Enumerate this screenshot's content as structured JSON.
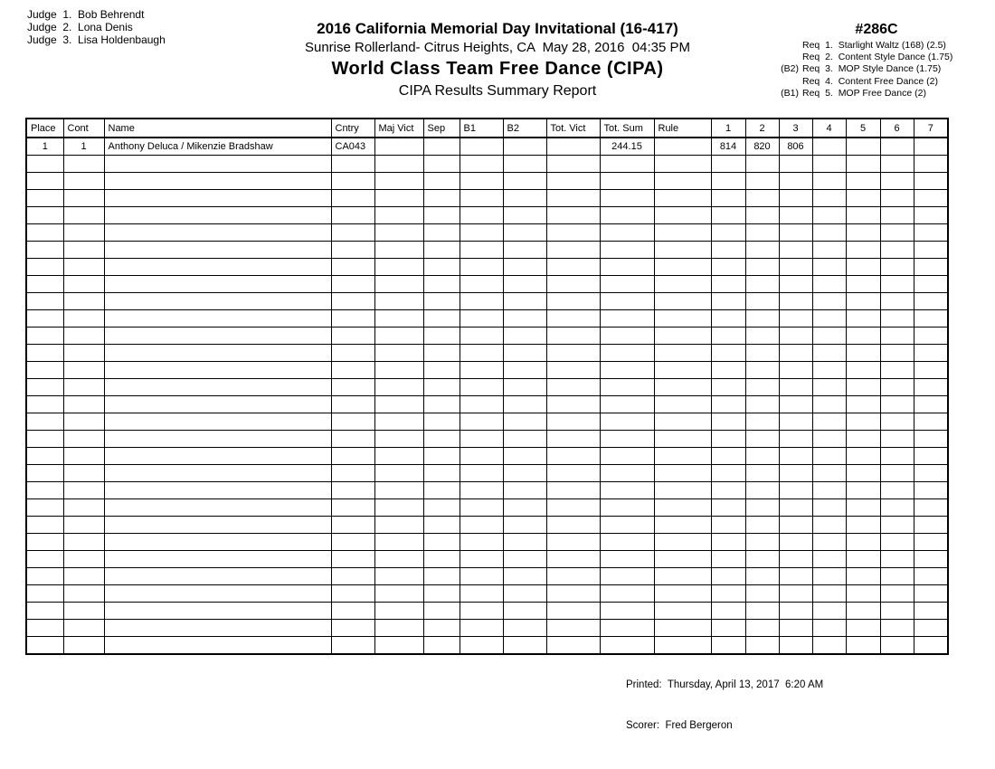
{
  "report": {
    "judges": [
      "Judge  1.  Bob Behrendt",
      "Judge  2.  Lona Denis",
      "Judge  3.  Lisa Holdenbaugh"
    ],
    "header": {
      "title": "2016 California Memorial Day Invitational (16-417)",
      "venue_line": "Sunrise Rollerland- Citrus Heights, CA  May 28, 2016  04:35 PM",
      "event_title": "World Class Team Free Dance (CIPA)",
      "report_title": "CIPA Results Summary Report"
    },
    "event_code": "#286C",
    "requirements": [
      {
        "prefix": "",
        "text": "Req  1.  Starlight Waltz (168) (2.5)"
      },
      {
        "prefix": "",
        "text": "Req  2.  Content Style Dance (1.75)"
      },
      {
        "prefix": "(B2)",
        "text": "Req  3.  MOP Style Dance (1.75)"
      },
      {
        "prefix": "",
        "text": "Req  4.  Content Free Dance (2)"
      },
      {
        "prefix": "(B1)",
        "text": "Req  5.  MOP Free Dance (2)"
      }
    ],
    "table": {
      "columns": [
        "Place",
        "Cont",
        "Name",
        "Cntry",
        "Maj Vict",
        "Sep",
        "B1",
        "B2",
        "Tot. Vict",
        "Tot. Sum",
        "Rule",
        "1",
        "2",
        "3",
        "4",
        "5",
        "6",
        "7"
      ],
      "rows": [
        [
          "1",
          "1",
          "Anthony Deluca / Mikenzie Bradshaw",
          "CA043",
          "",
          "",
          "",
          "",
          "",
          "244.15",
          "",
          "814",
          "820",
          "806",
          "",
          "",
          "",
          ""
        ]
      ],
      "empty_rows": 29
    },
    "footer": {
      "printed": "Printed:  Thursday, April 13, 2017  6:20 AM",
      "scorer": "Scorer:  Fred Bergeron"
    }
  }
}
